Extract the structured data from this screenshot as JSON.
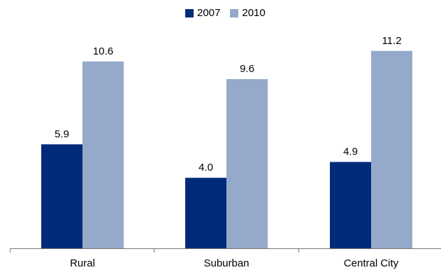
{
  "chart_data": {
    "type": "bar",
    "categories": [
      "Rural",
      "Suburban",
      "Central City"
    ],
    "series": [
      {
        "name": "2007",
        "values": [
          5.9,
          4.0,
          4.9
        ],
        "color": "#002B7A"
      },
      {
        "name": "2010",
        "values": [
          10.6,
          9.6,
          11.2
        ],
        "color": "#95A9CB"
      }
    ],
    "value_labels": [
      [
        "5.9",
        "4.0",
        "4.9"
      ],
      [
        "10.6",
        "9.6",
        "11.2"
      ]
    ],
    "title": "",
    "xlabel": "",
    "ylabel": "",
    "ylim": [
      0,
      12.5
    ],
    "grid": false,
    "legend_position": "top-center"
  }
}
